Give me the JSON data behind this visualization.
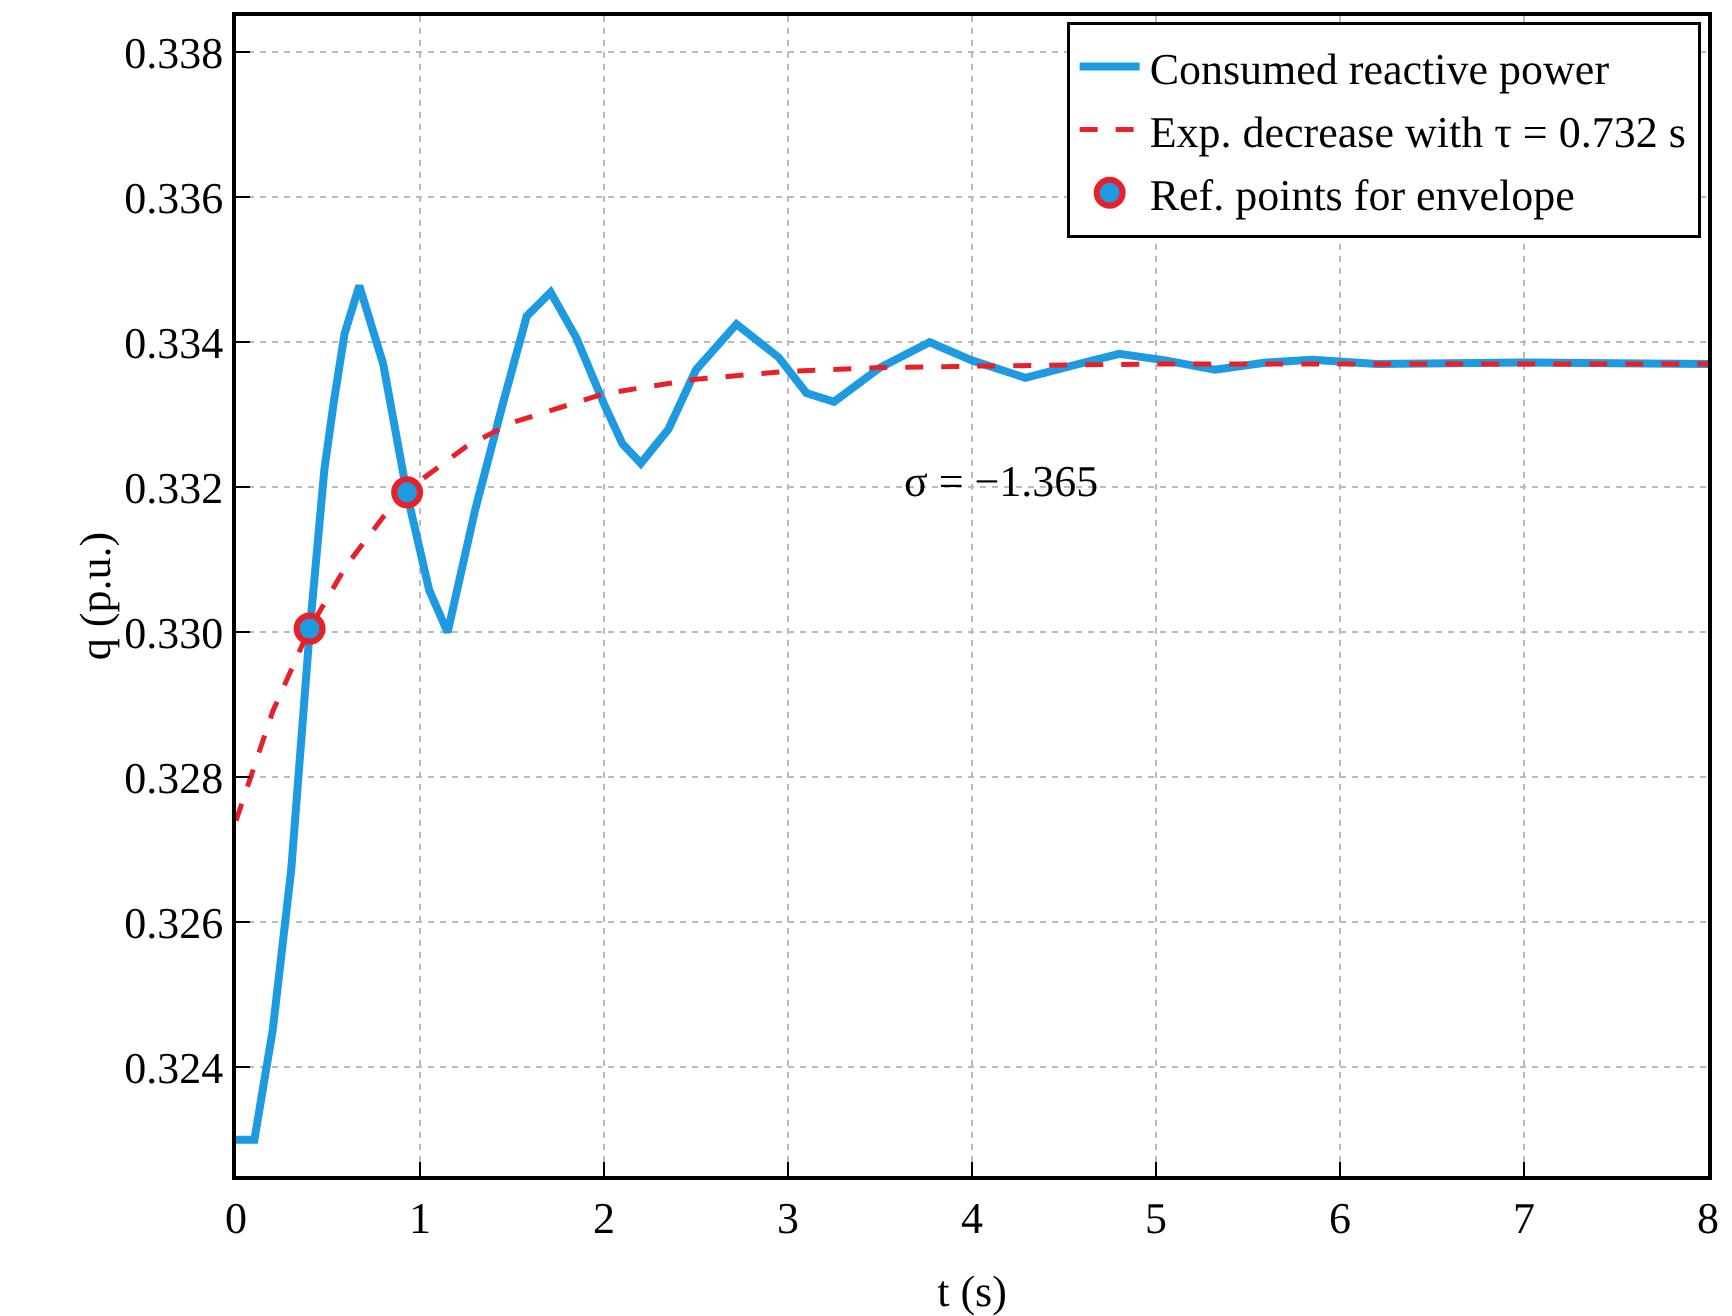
{
  "chart_data": {
    "type": "line",
    "xlabel": "t (s)",
    "ylabel": "q (p.u.)",
    "xlim": [
      0,
      8
    ],
    "xticks": [
      0,
      1,
      2,
      3,
      4,
      5,
      6,
      7,
      8
    ],
    "ylim": [
      0.3225,
      0.3385
    ],
    "yticks": [
      0.324,
      0.326,
      0.328,
      {
        "value": 0.33,
        "label": "0.330"
      },
      0.332,
      0.334,
      0.336,
      0.338
    ],
    "grid": true,
    "legend": "top right",
    "annotations": [
      "σ = −1.365"
    ],
    "series": [
      {
        "name": "Consumed reactive power",
        "color": "#1e9be0",
        "line_style": "solid",
        "marker": "none",
        "x": [
          0,
          0.1,
          0.2,
          0.3,
          0.4,
          0.48,
          0.53,
          0.59,
          0.67,
          0.8,
          0.93,
          1.05,
          1.15,
          1.3,
          1.45,
          1.58,
          1.71,
          1.85,
          2.0,
          2.1,
          2.2,
          2.35,
          2.5,
          2.72,
          2.95,
          3.1,
          3.25,
          3.5,
          3.77,
          4.0,
          4.29,
          4.55,
          4.8,
          5.05,
          5.32,
          5.6,
          5.85,
          6.2,
          7,
          8
        ],
        "values": [
          0.323,
          0.323,
          0.32452,
          0.32672,
          0.33,
          0.33224,
          0.33315,
          0.33412,
          0.33478,
          0.3337,
          0.3319,
          0.33058,
          0.33,
          0.33169,
          0.33315,
          0.33436,
          0.33469,
          0.33406,
          0.33315,
          0.3326,
          0.33233,
          0.3328,
          0.33362,
          0.33425,
          0.33379,
          0.3333,
          0.33318,
          0.33365,
          0.334,
          0.33375,
          0.33351,
          0.33368,
          0.33384,
          0.33375,
          0.33362,
          0.33372,
          0.33376,
          0.3337,
          0.33372,
          0.3337
        ]
      },
      {
        "name": "Exp. decrease with τ = 0.732 s",
        "color": "#e8202a",
        "line_style": "dashed",
        "marker": "none",
        "x": [
          0,
          0.2,
          0.4,
          0.6,
          0.8,
          0.93,
          1.0,
          1.25,
          1.5,
          2,
          2.5,
          3,
          3.5,
          4,
          5,
          6,
          8
        ],
        "values": [
          0.3274,
          0.32891,
          0.33005,
          0.33092,
          0.33159,
          0.33193,
          0.33209,
          0.33256,
          0.33289,
          0.33329,
          0.33349,
          0.3336,
          0.33365,
          0.33367,
          0.3337,
          0.3337,
          0.3337
        ]
      },
      {
        "name": "Ref. points for envelope",
        "type": "scatter",
        "color": "#1e9be0",
        "marker": "circle",
        "x": [
          0.4,
          0.93
        ],
        "values": [
          0.33005,
          0.33193
        ]
      }
    ]
  }
}
